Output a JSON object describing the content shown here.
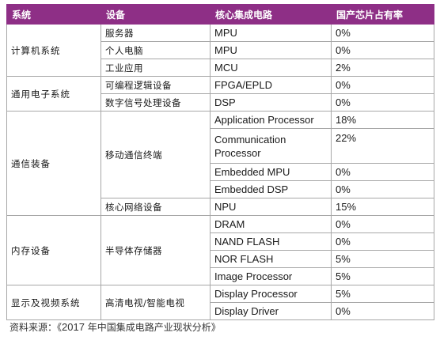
{
  "headers": [
    "系统",
    "设备",
    "核心集成电路",
    "国产芯片占有率"
  ],
  "groups": [
    {
      "system": "计算机系统",
      "devices": [
        {
          "device": "服务器",
          "chips": [
            {
              "chip": "MPU",
              "share": "0%"
            }
          ]
        },
        {
          "device": "个人电脑",
          "chips": [
            {
              "chip": "MPU",
              "share": "0%"
            }
          ]
        },
        {
          "device": "工业应用",
          "chips": [
            {
              "chip": "MCU",
              "share": "2%"
            }
          ]
        }
      ]
    },
    {
      "system": "通用电子系统",
      "devices": [
        {
          "device": "可编程逻辑设备",
          "chips": [
            {
              "chip": "FPGA/EPLD",
              "share": "0%"
            }
          ]
        },
        {
          "device": "数字信号处理设备",
          "chips": [
            {
              "chip": "DSP",
              "share": "0%"
            }
          ]
        }
      ]
    },
    {
      "system": "通信装备",
      "devices": [
        {
          "device": "移动通信终端",
          "chips": [
            {
              "chip": "Application Processor",
              "share": "18%"
            },
            {
              "chip": "Communication Processor",
              "share": "22%"
            },
            {
              "chip": "Embedded MPU",
              "share": "0%"
            },
            {
              "chip": "Embedded DSP",
              "share": "0%"
            }
          ]
        },
        {
          "device": "核心网络设备",
          "chips": [
            {
              "chip": "NPU",
              "share": "15%"
            }
          ]
        }
      ]
    },
    {
      "system": "内存设备",
      "devices": [
        {
          "device": "半导体存储器",
          "chips": [
            {
              "chip": "DRAM",
              "share": "0%"
            },
            {
              "chip": "NAND FLASH",
              "share": "0%"
            },
            {
              "chip": "NOR FLASH",
              "share": "5%"
            },
            {
              "chip": "Image Processor",
              "share": "5%"
            }
          ]
        }
      ]
    },
    {
      "system": "显示及视频系统",
      "devices": [
        {
          "device": "高清电视/智能电视",
          "chips": [
            {
              "chip": "Display Processor",
              "share": "5%"
            },
            {
              "chip": "Display Driver",
              "share": "0%"
            }
          ]
        }
      ]
    }
  ],
  "source": {
    "prefix": "资料来源：《",
    "year": "2017",
    "suffix": " 年中国集成电路产业现状分析》"
  },
  "colors": {
    "header_bg": "#8e2f86",
    "header_text": "#ffffff",
    "border": "#a7a7a7"
  }
}
